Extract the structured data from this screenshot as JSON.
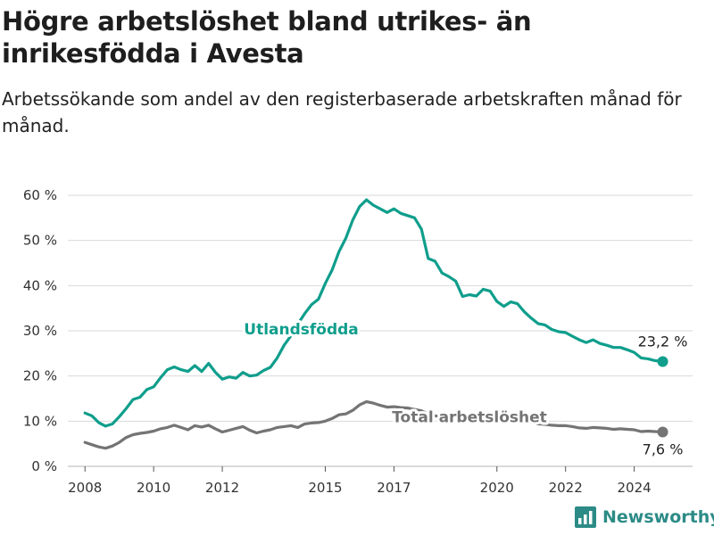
{
  "title": "Högre arbetslöshet bland utrikes- än inrikesfödda i Avesta",
  "subtitle": "Arbetssökande som andel av den registerbaserade arbetskraften månad för månad.",
  "brand": "Newsworthy",
  "colors": {
    "foreign": "#0f9e8c",
    "total": "#747474",
    "grid": "#d9d9d9",
    "brand": "#2c8b86"
  },
  "chart_data": {
    "type": "line",
    "xlim": [
      2007.5,
      2025.7
    ],
    "ylim": [
      0,
      60
    ],
    "x_ticks": [
      {
        "value": 2008,
        "label": "2008"
      },
      {
        "value": 2010,
        "label": "2010"
      },
      {
        "value": 2012,
        "label": "2012"
      },
      {
        "value": 2015,
        "label": "2015"
      },
      {
        "value": 2017,
        "label": "2017"
      },
      {
        "value": 2020,
        "label": "2020"
      },
      {
        "value": 2022,
        "label": "2022"
      },
      {
        "value": 2024,
        "label": "2024"
      }
    ],
    "y_ticks": [
      {
        "value": 0,
        "label": "0 %"
      },
      {
        "value": 10,
        "label": "10 %"
      },
      {
        "value": 20,
        "label": "20 %"
      },
      {
        "value": 30,
        "label": "30 %"
      },
      {
        "value": 40,
        "label": "40 %"
      },
      {
        "value": 50,
        "label": "50 %"
      },
      {
        "value": 60,
        "label": "60 %"
      }
    ],
    "series": [
      {
        "name": "Utlandsfödda",
        "end_label": "23,2 %",
        "points": [
          [
            2008.0,
            11.8
          ],
          [
            2008.2,
            11.2
          ],
          [
            2008.4,
            9.7
          ],
          [
            2008.6,
            8.9
          ],
          [
            2008.8,
            9.4
          ],
          [
            2009.0,
            11.0
          ],
          [
            2009.2,
            12.8
          ],
          [
            2009.4,
            14.8
          ],
          [
            2009.6,
            15.3
          ],
          [
            2009.8,
            17.0
          ],
          [
            2010.0,
            17.6
          ],
          [
            2010.2,
            19.6
          ],
          [
            2010.4,
            21.4
          ],
          [
            2010.6,
            22.0
          ],
          [
            2010.8,
            21.4
          ],
          [
            2011.0,
            21.0
          ],
          [
            2011.2,
            22.3
          ],
          [
            2011.4,
            21.0
          ],
          [
            2011.6,
            22.8
          ],
          [
            2011.8,
            20.8
          ],
          [
            2012.0,
            19.3
          ],
          [
            2012.2,
            19.8
          ],
          [
            2012.4,
            19.5
          ],
          [
            2012.6,
            20.8
          ],
          [
            2012.8,
            20.0
          ],
          [
            2013.0,
            20.2
          ],
          [
            2013.2,
            21.2
          ],
          [
            2013.4,
            21.9
          ],
          [
            2013.6,
            24.0
          ],
          [
            2013.8,
            26.8
          ],
          [
            2014.0,
            28.9
          ],
          [
            2014.2,
            31.5
          ],
          [
            2014.4,
            33.8
          ],
          [
            2014.6,
            35.8
          ],
          [
            2014.8,
            37.0
          ],
          [
            2015.0,
            40.5
          ],
          [
            2015.2,
            43.5
          ],
          [
            2015.4,
            47.5
          ],
          [
            2015.6,
            50.5
          ],
          [
            2015.8,
            54.5
          ],
          [
            2016.0,
            57.5
          ],
          [
            2016.2,
            59.0
          ],
          [
            2016.4,
            57.8
          ],
          [
            2016.6,
            57.0
          ],
          [
            2016.8,
            56.2
          ],
          [
            2017.0,
            57.0
          ],
          [
            2017.2,
            56.0
          ],
          [
            2017.4,
            55.5
          ],
          [
            2017.6,
            55.0
          ],
          [
            2017.8,
            52.5
          ],
          [
            2018.0,
            46.0
          ],
          [
            2018.2,
            45.4
          ],
          [
            2018.4,
            42.8
          ],
          [
            2018.6,
            42.0
          ],
          [
            2018.8,
            41.0
          ],
          [
            2019.0,
            37.6
          ],
          [
            2019.2,
            38.0
          ],
          [
            2019.4,
            37.7
          ],
          [
            2019.6,
            39.2
          ],
          [
            2019.8,
            38.8
          ],
          [
            2020.0,
            36.5
          ],
          [
            2020.2,
            35.4
          ],
          [
            2020.4,
            36.4
          ],
          [
            2020.6,
            36.0
          ],
          [
            2020.8,
            34.2
          ],
          [
            2021.0,
            32.8
          ],
          [
            2021.2,
            31.6
          ],
          [
            2021.4,
            31.3
          ],
          [
            2021.6,
            30.3
          ],
          [
            2021.8,
            29.8
          ],
          [
            2022.0,
            29.6
          ],
          [
            2022.2,
            28.8
          ],
          [
            2022.4,
            28.0
          ],
          [
            2022.6,
            27.4
          ],
          [
            2022.8,
            28.0
          ],
          [
            2023.0,
            27.2
          ],
          [
            2023.2,
            26.8
          ],
          [
            2023.4,
            26.3
          ],
          [
            2023.6,
            26.3
          ],
          [
            2023.8,
            25.8
          ],
          [
            2024.0,
            25.2
          ],
          [
            2024.2,
            24.0
          ],
          [
            2024.4,
            23.8
          ],
          [
            2024.6,
            23.4
          ],
          [
            2024.83,
            23.2
          ]
        ]
      },
      {
        "name": "Total arbetslöshet",
        "end_label": "7,6 %",
        "points": [
          [
            2008.0,
            5.3
          ],
          [
            2008.2,
            4.8
          ],
          [
            2008.4,
            4.3
          ],
          [
            2008.6,
            4.0
          ],
          [
            2008.8,
            4.5
          ],
          [
            2009.0,
            5.3
          ],
          [
            2009.2,
            6.4
          ],
          [
            2009.4,
            7.0
          ],
          [
            2009.6,
            7.3
          ],
          [
            2009.8,
            7.5
          ],
          [
            2010.0,
            7.8
          ],
          [
            2010.2,
            8.3
          ],
          [
            2010.4,
            8.6
          ],
          [
            2010.6,
            9.1
          ],
          [
            2010.8,
            8.6
          ],
          [
            2011.0,
            8.1
          ],
          [
            2011.2,
            9.0
          ],
          [
            2011.4,
            8.7
          ],
          [
            2011.6,
            9.1
          ],
          [
            2011.8,
            8.3
          ],
          [
            2012.0,
            7.6
          ],
          [
            2012.2,
            8.0
          ],
          [
            2012.4,
            8.4
          ],
          [
            2012.6,
            8.8
          ],
          [
            2012.8,
            8.0
          ],
          [
            2013.0,
            7.4
          ],
          [
            2013.2,
            7.8
          ],
          [
            2013.4,
            8.1
          ],
          [
            2013.6,
            8.6
          ],
          [
            2013.8,
            8.8
          ],
          [
            2014.0,
            9.0
          ],
          [
            2014.2,
            8.6
          ],
          [
            2014.4,
            9.4
          ],
          [
            2014.6,
            9.6
          ],
          [
            2014.8,
            9.7
          ],
          [
            2015.0,
            10.0
          ],
          [
            2015.2,
            10.6
          ],
          [
            2015.4,
            11.4
          ],
          [
            2015.6,
            11.6
          ],
          [
            2015.8,
            12.4
          ],
          [
            2016.0,
            13.6
          ],
          [
            2016.2,
            14.3
          ],
          [
            2016.4,
            14.0
          ],
          [
            2016.6,
            13.5
          ],
          [
            2016.8,
            13.1
          ],
          [
            2017.0,
            13.2
          ],
          [
            2017.2,
            13.0
          ],
          [
            2017.4,
            12.9
          ],
          [
            2017.6,
            12.6
          ],
          [
            2017.8,
            12.3
          ],
          [
            2018.0,
            11.6
          ],
          [
            2018.2,
            11.2
          ],
          [
            2018.4,
            10.9
          ],
          [
            2018.6,
            10.7
          ],
          [
            2018.8,
            10.6
          ],
          [
            2019.0,
            10.0
          ],
          [
            2019.2,
            10.1
          ],
          [
            2019.4,
            10.0
          ],
          [
            2019.6,
            10.3
          ],
          [
            2019.8,
            10.2
          ],
          [
            2020.0,
            10.6
          ],
          [
            2020.2,
            10.3
          ],
          [
            2020.4,
            10.5
          ],
          [
            2020.6,
            10.2
          ],
          [
            2020.8,
            9.9
          ],
          [
            2021.0,
            9.7
          ],
          [
            2021.2,
            9.4
          ],
          [
            2021.4,
            9.3
          ],
          [
            2021.6,
            9.1
          ],
          [
            2021.8,
            9.0
          ],
          [
            2022.0,
            9.0
          ],
          [
            2022.2,
            8.8
          ],
          [
            2022.4,
            8.5
          ],
          [
            2022.6,
            8.4
          ],
          [
            2022.8,
            8.6
          ],
          [
            2023.0,
            8.5
          ],
          [
            2023.2,
            8.4
          ],
          [
            2023.4,
            8.2
          ],
          [
            2023.6,
            8.3
          ],
          [
            2023.8,
            8.2
          ],
          [
            2024.0,
            8.1
          ],
          [
            2024.2,
            7.7
          ],
          [
            2024.4,
            7.8
          ],
          [
            2024.6,
            7.7
          ],
          [
            2024.83,
            7.6
          ]
        ]
      }
    ],
    "label_anchors": [
      {
        "series": 0,
        "x": 2014.3,
        "y": 29.2
      },
      {
        "series": 1,
        "x": 2019.2,
        "y": 9.8
      }
    ]
  }
}
